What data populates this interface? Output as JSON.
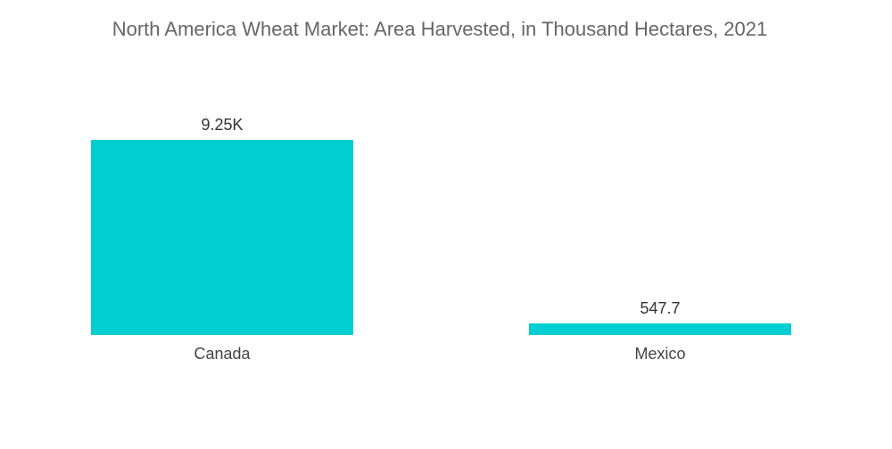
{
  "chart_data": {
    "type": "bar",
    "title": "North America Wheat Market: Area Harvested, in Thousand Hectares, 2021",
    "categories": [
      "Canada",
      "Mexico"
    ],
    "values": [
      9250,
      547.7
    ],
    "value_labels": [
      "9.25K",
      "547.7"
    ],
    "xlabel": "",
    "ylabel": "",
    "grid": false,
    "legend": "none",
    "bar_color": "#00CED1"
  }
}
